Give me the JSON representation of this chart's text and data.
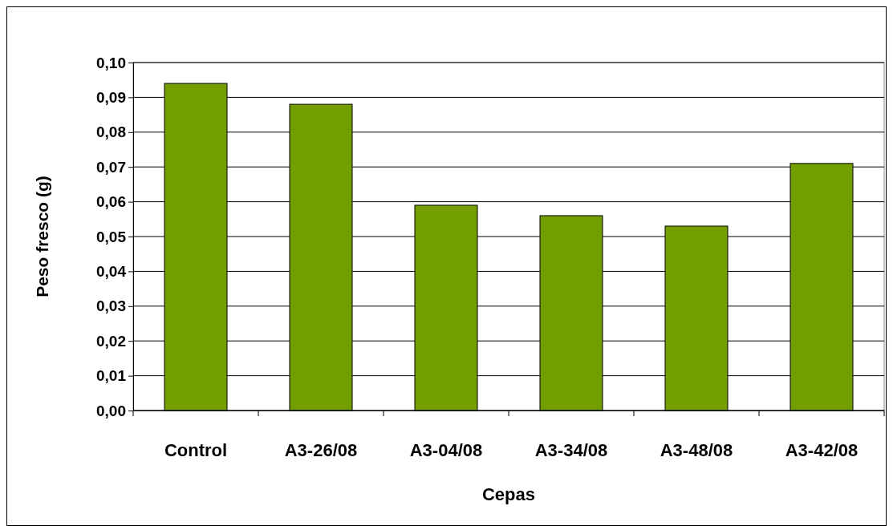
{
  "chart_data": {
    "type": "bar",
    "xlabel": "Cepas",
    "ylabel": "Peso fresco (g)",
    "categories": [
      "Control",
      "A3-26/08",
      "A3-04/08",
      "A3-34/08",
      "A3-48/08",
      "A3-42/08"
    ],
    "values": [
      0.094,
      0.088,
      0.059,
      0.056,
      0.053,
      0.071
    ],
    "color": "#739e00",
    "ylim": [
      0,
      0.1
    ],
    "yticks": [
      {
        "value": 0,
        "label": "0,00"
      },
      {
        "value": 0.01,
        "label": "0,01"
      },
      {
        "value": 0.02,
        "label": "0,02"
      },
      {
        "value": 0.03,
        "label": "0,03"
      },
      {
        "value": 0.04,
        "label": "0,04"
      },
      {
        "value": 0.05,
        "label": "0,05"
      },
      {
        "value": 0.06,
        "label": "0,06"
      },
      {
        "value": 0.07,
        "label": "0,07"
      },
      {
        "value": 0.08,
        "label": "0,08"
      },
      {
        "value": 0.09,
        "label": "0,09"
      },
      {
        "value": 0.1,
        "label": "0,10"
      }
    ],
    "grid": "y"
  }
}
